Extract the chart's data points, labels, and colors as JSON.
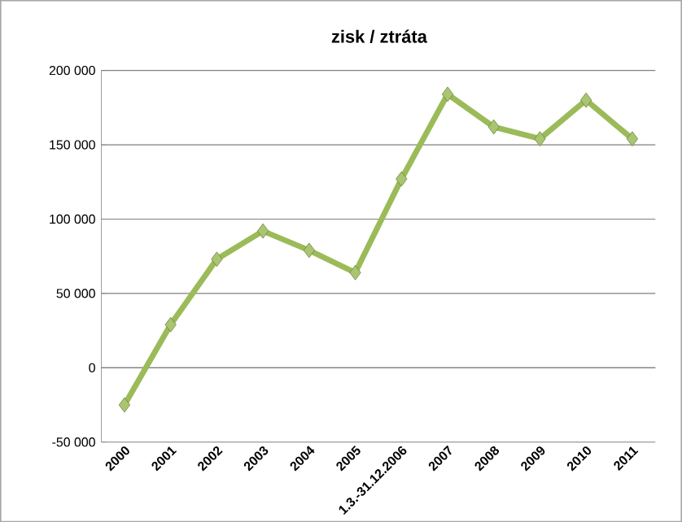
{
  "chart_data": {
    "type": "line",
    "title": "zisk / ztráta",
    "categories": [
      "2000",
      "2001",
      "2002",
      "2003",
      "2004",
      "2005",
      "1.3.-31.12.2006",
      "2007",
      "2008",
      "2009",
      "2010",
      "2011"
    ],
    "series": [
      {
        "color": "#9bbb59",
        "values": [
          -25000,
          29000,
          73000,
          92000,
          79000,
          64000,
          127000,
          184000,
          162000,
          154000,
          180000,
          154000
        ]
      }
    ],
    "ylim": [
      -50000,
      200000
    ],
    "yticks": [
      {
        "value": -50000,
        "label": "-50 000"
      },
      {
        "value": 0,
        "label": "0"
      },
      {
        "value": 50000,
        "label": "50 000"
      },
      {
        "value": 100000,
        "label": "100 000"
      },
      {
        "value": 150000,
        "label": "150 000"
      },
      {
        "value": 200000,
        "label": "200 000"
      }
    ],
    "grid": "y",
    "marker": "diamond",
    "line_style": "solid"
  }
}
